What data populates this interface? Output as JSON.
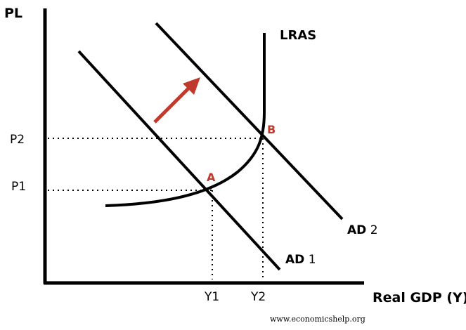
{
  "diagram": {
    "y_axis_label": "PL",
    "x_axis_label": "Real GDP (Y)",
    "price_levels": {
      "p1": "P1",
      "p2": "P2"
    },
    "output_levels": {
      "y1": "Y1",
      "y2": "Y2"
    },
    "curves": {
      "lras": "LRAS",
      "ad1_prefix": "AD",
      "ad1_suffix": "1",
      "ad2_prefix": "AD",
      "ad2_suffix": "2"
    },
    "points": {
      "a": "A",
      "b": "B"
    },
    "colors": {
      "ink": "#000000",
      "accent": "#c0392b"
    }
  },
  "footer": {
    "source": "www.economicshelp.org"
  }
}
